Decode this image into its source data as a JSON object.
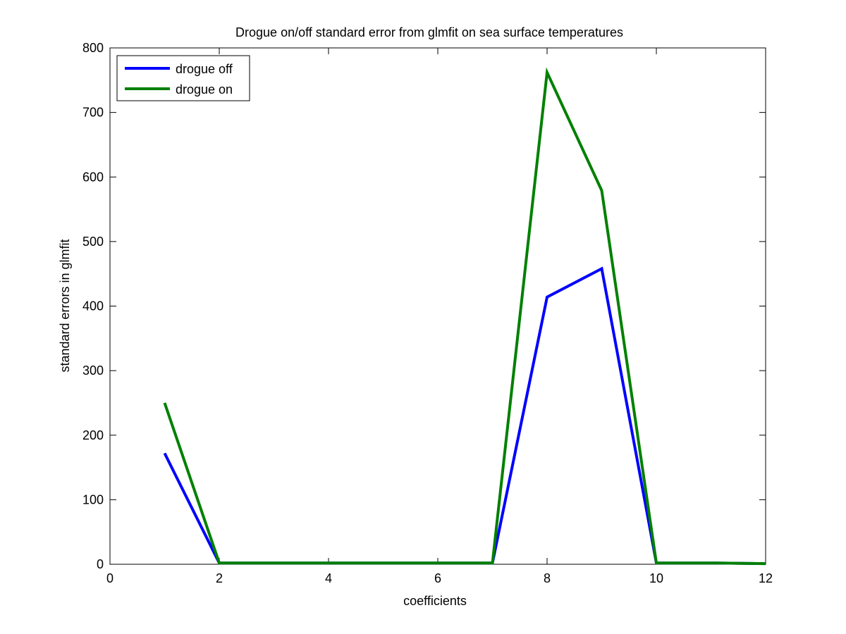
{
  "chart_data": {
    "type": "line",
    "title": "Drogue on/off standard error from glmfit on sea surface temperatures",
    "xlabel": "coefficients",
    "ylabel": "standard errors in glmfit",
    "xlim": [
      0,
      12
    ],
    "ylim": [
      0,
      800
    ],
    "xticks": [
      0,
      2,
      4,
      6,
      8,
      10,
      12
    ],
    "yticks": [
      0,
      100,
      200,
      300,
      400,
      500,
      600,
      700,
      800
    ],
    "grid": false,
    "legend_position": "top-left",
    "series": [
      {
        "name": "drogue off",
        "color": "#0000ff",
        "x": [
          1,
          2,
          3,
          4,
          5,
          6,
          7,
          8,
          9,
          10,
          11,
          12
        ],
        "y": [
          172,
          2,
          2,
          2,
          2,
          2,
          2,
          414,
          458,
          2,
          2,
          1
        ]
      },
      {
        "name": "drogue on",
        "color": "#008000",
        "x": [
          1,
          2,
          3,
          4,
          5,
          6,
          7,
          8,
          9,
          10,
          11,
          12
        ],
        "y": [
          250,
          2,
          2,
          2,
          2,
          2,
          2,
          762,
          579,
          2,
          2,
          1
        ]
      }
    ]
  }
}
